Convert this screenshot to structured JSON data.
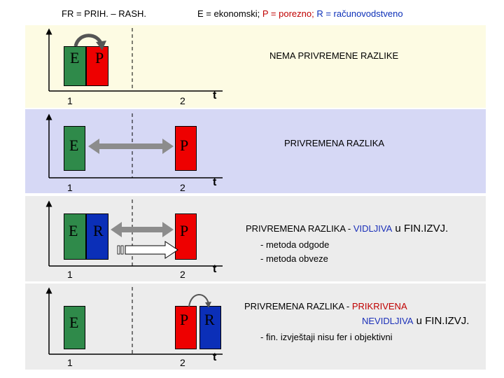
{
  "header": {
    "formula": "FR = PRIH. – RASH.",
    "legend_prefix": "E = ekonomski;",
    "legend_p": "P = porezno;",
    "legend_r": "R = računovodstveno"
  },
  "colors": {
    "E": "#2f8a4a",
    "P": "#ee0000",
    "R": "#0b2fb8",
    "arrow": "#888888"
  },
  "axis": {
    "tick1": "1",
    "tick2": "2",
    "t": "t"
  },
  "letters": {
    "E": "E",
    "P": "P",
    "R": "R"
  },
  "panels": {
    "p1": {
      "text": "NEMA PRIVREMENE RAZLIKE"
    },
    "p2": {
      "text": "PRIVREMENA RAZLIKA"
    },
    "p3": {
      "text_main": "PRIVREMENA RAZLIKA - ",
      "text_highlight": "VIDLJIVA",
      "text_tail": " u FIN.IZVJ.",
      "sub1": "- metoda odgode",
      "sub2": "- metoda obveze"
    },
    "p4": {
      "text_main": "PRIVREMENA RAZLIKA - ",
      "text_highlight": "PRIKRIVENA",
      "line2_highlight": "NEVIDLJIVA",
      "line2_tail": " u FIN.IZVJ.",
      "sub1": "- fin. izvještaji nisu fer i objektivni"
    }
  }
}
